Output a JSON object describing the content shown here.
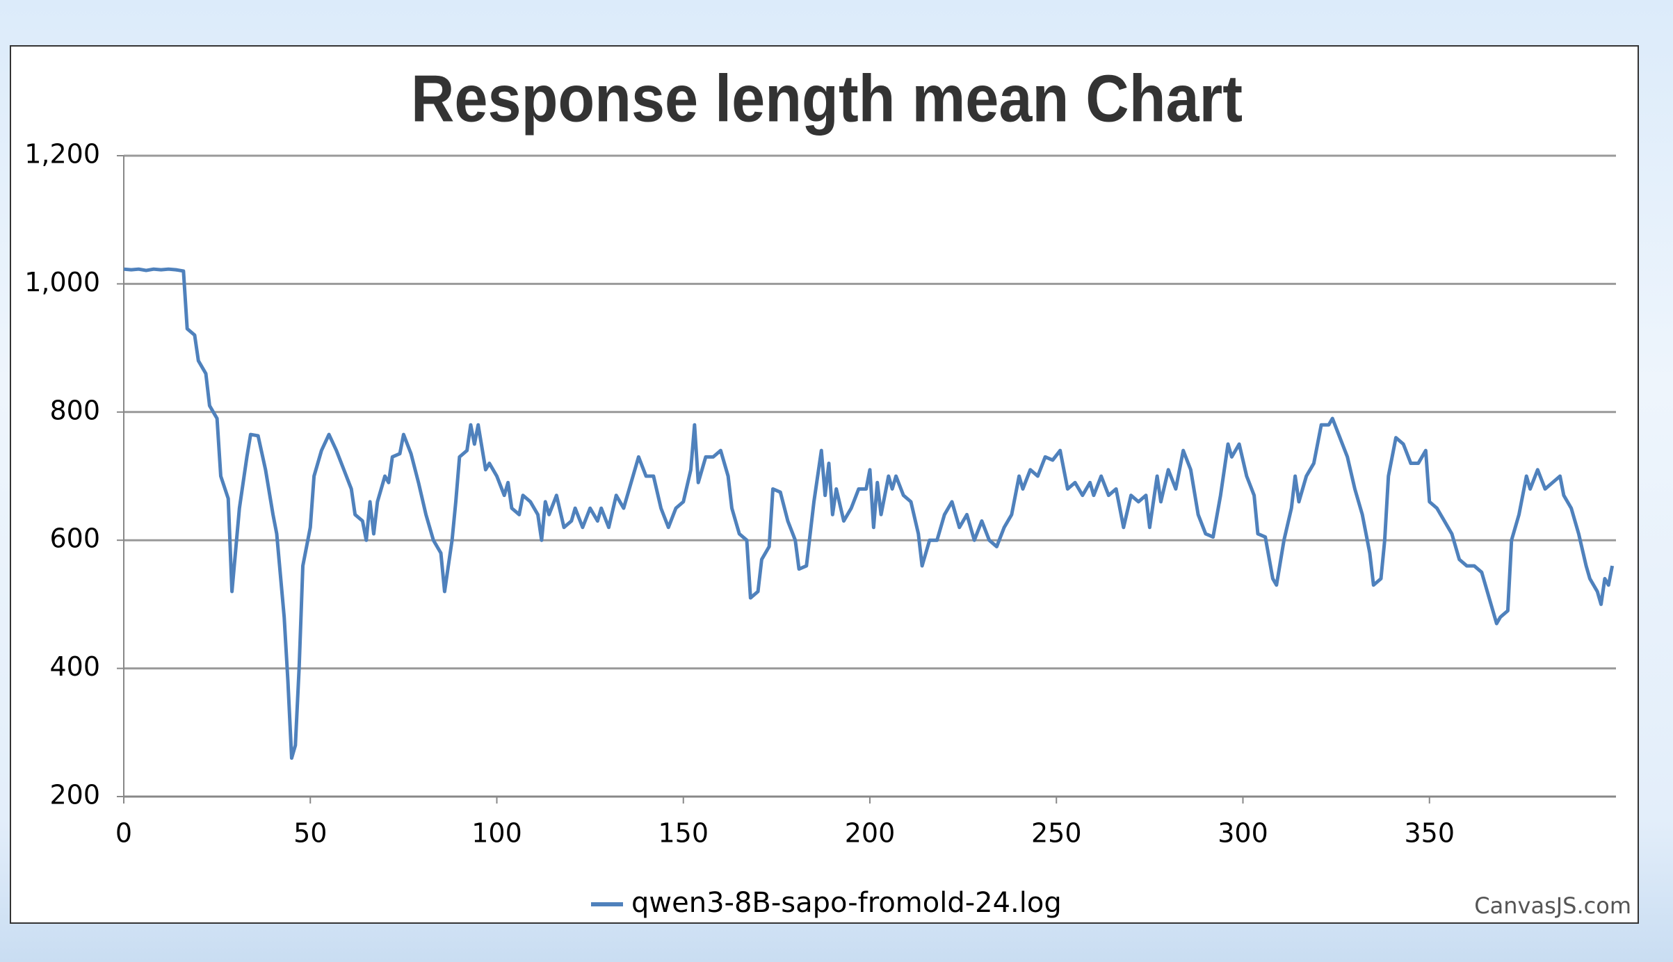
{
  "chart_data": {
    "type": "line",
    "title": "Response length mean Chart",
    "credit": "CanvasJS.com",
    "xlim": [
      0,
      400
    ],
    "ylim": [
      200,
      1200
    ],
    "xticks": [
      0,
      50,
      100,
      150,
      200,
      250,
      300,
      350
    ],
    "yticks": [
      {
        "value": 200,
        "label": "200"
      },
      {
        "value": 400,
        "label": "400"
      },
      {
        "value": 600,
        "label": "600"
      },
      {
        "value": 800,
        "label": "800"
      },
      {
        "value": 1000,
        "label": "1,000"
      },
      {
        "value": 1200,
        "label": "1,200"
      }
    ],
    "grid": true,
    "legend": "bottom",
    "x": [
      0,
      2,
      4,
      6,
      8,
      10,
      12,
      14,
      16,
      17,
      19,
      20,
      22,
      23,
      25,
      26,
      28,
      29,
      31,
      33,
      34,
      36,
      38,
      40,
      41,
      43,
      44,
      45,
      46,
      47,
      48,
      50,
      51,
      53,
      55,
      57,
      59,
      61,
      62,
      64,
      65,
      66,
      67,
      68,
      70,
      71,
      72,
      74,
      75,
      77,
      79,
      81,
      83,
      85,
      86,
      88,
      89,
      90,
      92,
      93,
      94,
      95,
      97,
      98,
      100,
      102,
      103,
      104,
      106,
      107,
      109,
      111,
      112,
      113,
      114,
      116,
      118,
      120,
      121,
      123,
      125,
      127,
      128,
      130,
      132,
      134,
      136,
      138,
      140,
      142,
      144,
      146,
      148,
      150,
      152,
      153,
      154,
      156,
      158,
      160,
      162,
      163,
      165,
      167,
      168,
      170,
      171,
      173,
      174,
      176,
      178,
      180,
      181,
      183,
      185,
      187,
      188,
      189,
      190,
      191,
      193,
      195,
      197,
      199,
      200,
      201,
      202,
      203,
      205,
      206,
      207,
      209,
      211,
      213,
      214,
      216,
      218,
      220,
      222,
      224,
      226,
      228,
      230,
      232,
      234,
      236,
      238,
      240,
      241,
      243,
      245,
      247,
      249,
      251,
      253,
      255,
      257,
      259,
      260,
      262,
      264,
      266,
      268,
      270,
      272,
      274,
      275,
      277,
      278,
      280,
      282,
      284,
      286,
      288,
      290,
      292,
      294,
      296,
      297,
      299,
      301,
      303,
      304,
      306,
      308,
      309,
      311,
      313,
      314,
      315,
      317,
      319,
      321,
      323,
      324,
      326,
      328,
      330,
      332,
      334,
      335,
      337,
      338,
      339,
      341,
      343,
      345,
      347,
      349,
      350,
      352,
      354,
      356,
      358,
      360,
      362,
      364,
      366,
      368,
      369,
      371,
      372,
      374,
      376,
      377,
      379,
      381,
      383,
      385,
      386,
      388,
      390,
      392,
      393,
      395,
      396,
      397,
      398,
      399
    ],
    "series": [
      {
        "name": "qwen3-8B-sapo-fromold-24.log",
        "color": "#4f81bc",
        "values": [
          1023,
          1022,
          1023,
          1021,
          1023,
          1022,
          1023,
          1022,
          1020,
          930,
          920,
          880,
          860,
          810,
          790,
          700,
          665,
          520,
          650,
          730,
          765,
          763,
          710,
          640,
          610,
          480,
          380,
          260,
          280,
          400,
          560,
          620,
          700,
          740,
          765,
          740,
          710,
          680,
          640,
          630,
          600,
          660,
          610,
          660,
          700,
          690,
          730,
          735,
          765,
          735,
          690,
          640,
          600,
          580,
          520,
          600,
          660,
          730,
          740,
          780,
          750,
          780,
          710,
          720,
          700,
          670,
          690,
          650,
          640,
          670,
          660,
          640,
          600,
          660,
          640,
          670,
          620,
          630,
          650,
          620,
          650,
          630,
          650,
          620,
          670,
          650,
          690,
          730,
          700,
          700,
          650,
          620,
          650,
          660,
          710,
          780,
          690,
          730,
          730,
          740,
          700,
          650,
          610,
          600,
          510,
          520,
          570,
          590,
          680,
          675,
          630,
          600,
          555,
          560,
          660,
          740,
          670,
          720,
          640,
          680,
          630,
          650,
          680,
          680,
          710,
          620,
          690,
          640,
          700,
          680,
          700,
          670,
          660,
          610,
          560,
          600,
          600,
          640,
          660,
          620,
          640,
          600,
          630,
          600,
          590,
          620,
          640,
          700,
          680,
          710,
          700,
          730,
          725,
          740,
          680,
          690,
          670,
          690,
          670,
          700,
          670,
          680,
          620,
          670,
          660,
          670,
          620,
          700,
          660,
          710,
          680,
          740,
          710,
          640,
          610,
          605,
          670,
          750,
          730,
          750,
          700,
          670,
          610,
          605,
          540,
          530,
          600,
          650,
          700,
          660,
          700,
          720,
          780,
          780,
          790,
          760,
          730,
          680,
          640,
          580,
          530,
          540,
          600,
          700,
          760,
          750,
          720,
          720,
          740,
          660,
          650,
          630,
          610,
          570,
          560,
          560,
          550,
          510,
          470,
          480,
          490,
          600,
          640,
          700,
          680,
          710,
          680,
          690,
          700,
          670,
          650,
          610,
          560,
          540,
          520,
          500,
          540,
          530,
          560
        ]
      }
    ]
  }
}
